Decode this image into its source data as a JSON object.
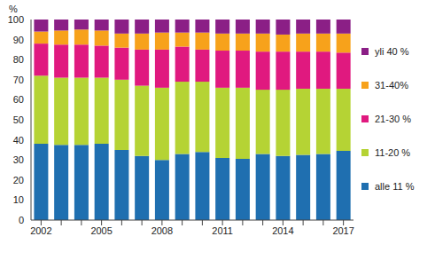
{
  "chart_data": {
    "type": "bar",
    "stacked": true,
    "y_label": "%",
    "categories": [
      "2002",
      null,
      null,
      "2005",
      null,
      null,
      "2008",
      null,
      null,
      "2011",
      null,
      null,
      "2014",
      null,
      null,
      "2017"
    ],
    "ylim": [
      0,
      100
    ],
    "yticks": [
      0,
      10,
      20,
      30,
      40,
      50,
      60,
      70,
      80,
      90,
      100
    ],
    "grid": false,
    "legend": "right",
    "series": [
      {
        "name": "alle 11 %",
        "color": "#1f6fb0",
        "values": [
          38,
          37.5,
          37.5,
          38,
          35,
          32,
          30,
          33,
          34,
          31,
          30.5,
          33,
          32,
          32.5,
          33,
          34.5
        ]
      },
      {
        "name": "11-20 %",
        "color": "#b5d334",
        "values": [
          34,
          33.5,
          33.5,
          33,
          35,
          35,
          36,
          36,
          35,
          35,
          35.5,
          32,
          33,
          33,
          32.5,
          31
        ]
      },
      {
        "name": "21-30 %",
        "color": "#e0197f",
        "values": [
          16,
          16.5,
          16.5,
          16,
          16,
          18,
          19,
          17.5,
          16,
          18.5,
          18.5,
          19,
          19,
          18.5,
          18.5,
          18
        ]
      },
      {
        "name": "31-40%",
        "color": "#f7a21b",
        "values": [
          6,
          7,
          7.5,
          7.5,
          7,
          8,
          8.5,
          7,
          8.5,
          8.5,
          8.5,
          9,
          8.5,
          9,
          9,
          9.5
        ]
      },
      {
        "name": "yli 40 %",
        "color": "#8b1f86",
        "values": [
          6,
          5.5,
          5,
          5.5,
          7,
          7,
          6.5,
          6.5,
          6.5,
          7,
          7,
          7,
          7.5,
          7,
          7,
          7
        ]
      }
    ]
  }
}
